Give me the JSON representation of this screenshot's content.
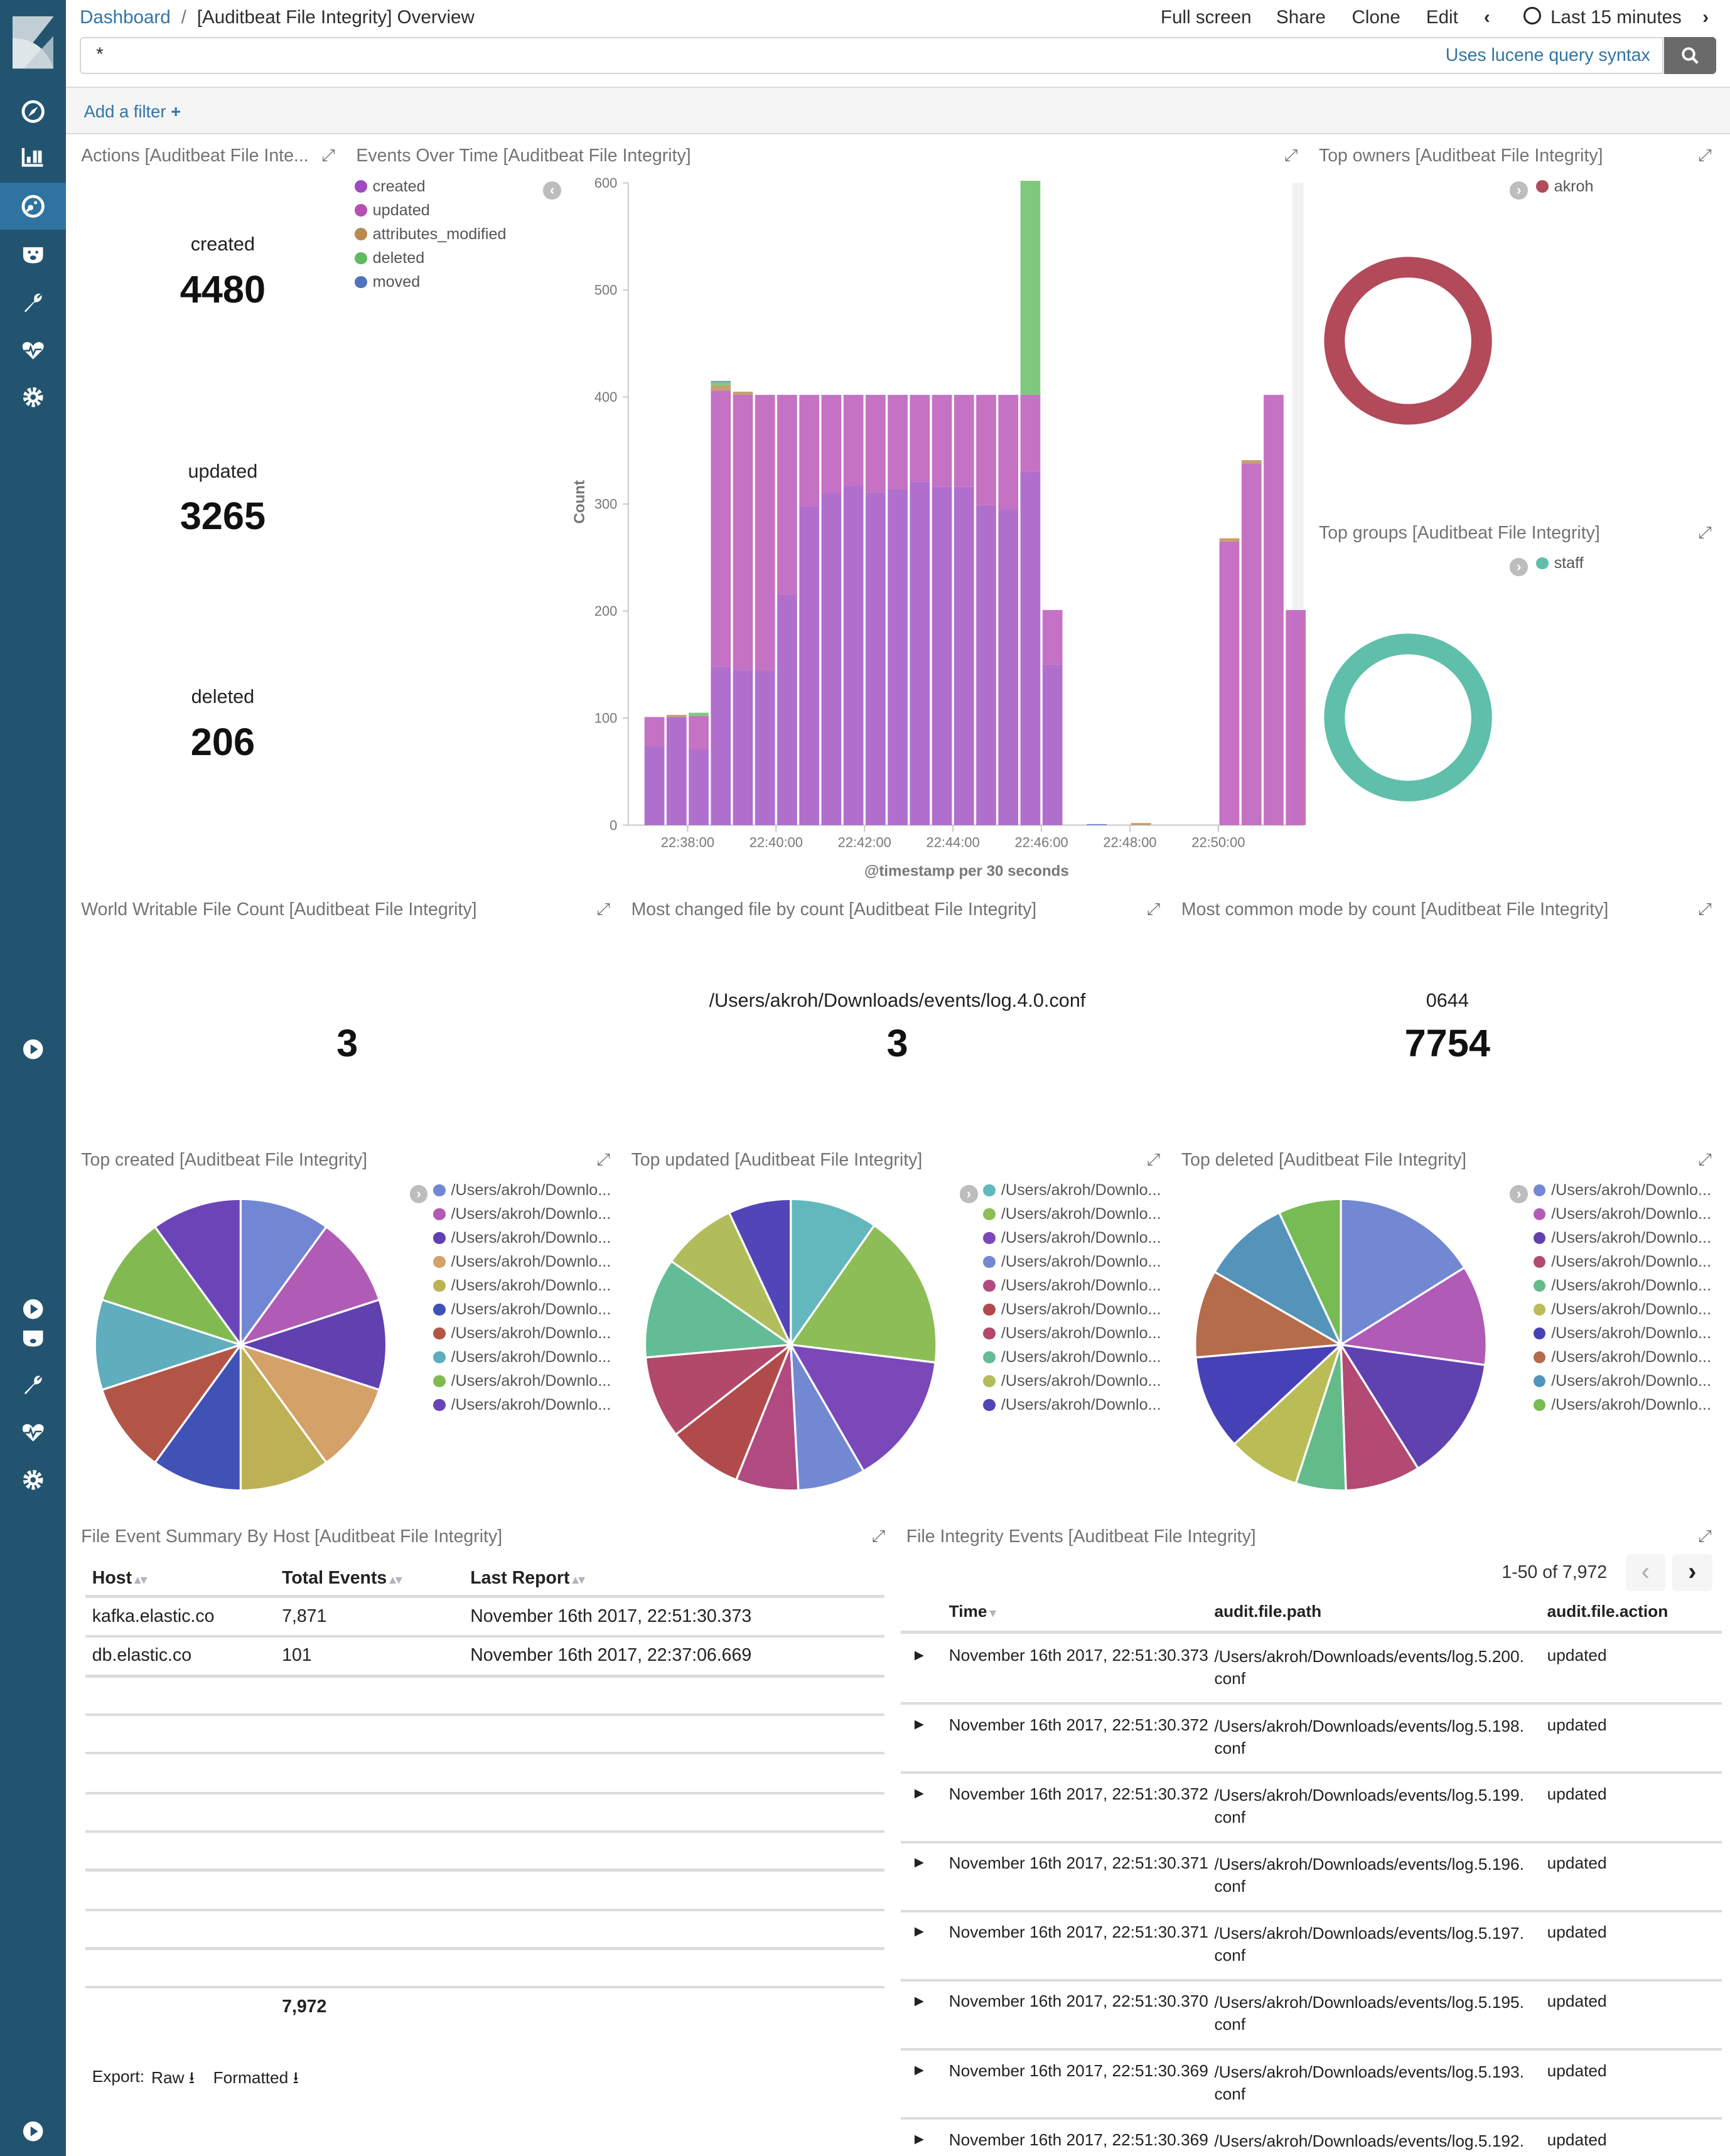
{
  "header": {
    "breadcrumb_root": "Dashboard",
    "breadcrumb_sep": "/",
    "breadcrumb_title": "[Auditbeat File Integrity] Overview",
    "menu": [
      "Full screen",
      "Share",
      "Clone",
      "Edit"
    ],
    "time_range": "Last 15 minutes",
    "prev_icon": "chevron-left-icon",
    "next_icon": "chevron-right-icon"
  },
  "query": {
    "value": "*",
    "syntax_link": "Uses lucene query syntax",
    "search_icon": "search-icon"
  },
  "filter": {
    "add_label": "Add a filter",
    "plus": "+"
  },
  "colors": {
    "sidebar": "#225470",
    "sidebar_active": "#2F73A0",
    "link": "#3175A6"
  },
  "sidebar": {
    "icons": [
      "kibana-logo",
      "compass-icon",
      "bar-chart-icon",
      "dashboard-icon",
      "timelion-bear-icon",
      "wrench-icon",
      "heartbeat-icon",
      "gear-icon",
      "collapse-play-icon"
    ],
    "active": "dashboard-icon"
  },
  "panels": {
    "actions": {
      "title": "Actions [Auditbeat File Inte...",
      "metrics": [
        {
          "label": "created",
          "value": "4480"
        },
        {
          "label": "updated",
          "value": "3265"
        },
        {
          "label": "deleted",
          "value": "206"
        }
      ]
    },
    "events_over_time": {
      "title": "Events Over Time [Auditbeat File Integrity]"
    },
    "top_owners": {
      "title": "Top owners [Auditbeat File Integrity]",
      "legend": "akroh",
      "color": "#B24A5A"
    },
    "top_groups": {
      "title": "Top groups [Auditbeat File Integrity]",
      "legend": "staff",
      "color": "#5FBFAA"
    },
    "world_writable": {
      "title": "World Writable File Count [Auditbeat File Integrity]",
      "label": "",
      "value": "3"
    },
    "most_changed": {
      "title": "Most changed file by count [Auditbeat File Integrity]",
      "label": "/Users/akroh/Downloads/events/log.4.0.conf",
      "value": "3"
    },
    "common_mode": {
      "title": "Most common mode by count [Auditbeat File Integrity]",
      "label": "0644",
      "value": "7754"
    },
    "top_created": {
      "title": "Top created [Auditbeat File Integrity]"
    },
    "top_updated": {
      "title": "Top updated [Auditbeat File Integrity]"
    },
    "top_deleted": {
      "title": "Top deleted [Auditbeat File Integrity]"
    },
    "host_summary": {
      "title": "File Event Summary By Host [Auditbeat File Integrity]",
      "columns": [
        "Host",
        "Total Events",
        "Last Report"
      ],
      "rows": [
        [
          "kafka.elastic.co",
          "7,871",
          "November 16th 2017, 22:51:30.373"
        ],
        [
          "db.elastic.co",
          "101",
          "November 16th 2017, 22:37:06.669"
        ]
      ],
      "total": "7,972",
      "export_label": "Export:",
      "export_raw": "Raw",
      "export_formatted": "Formatted"
    },
    "events_table": {
      "title": "File Integrity Events [Auditbeat File Integrity]",
      "pagination": "1-50 of 7,972",
      "columns": [
        "Time",
        "audit.file.path",
        "audit.file.action"
      ],
      "rows": [
        [
          "November 16th 2017, 22:51:30.373",
          "/Users/akroh/Downloads/events/log.5.200.conf",
          "updated"
        ],
        [
          "November 16th 2017, 22:51:30.372",
          "/Users/akroh/Downloads/events/log.5.198.conf",
          "updated"
        ],
        [
          "November 16th 2017, 22:51:30.372",
          "/Users/akroh/Downloads/events/log.5.199.conf",
          "updated"
        ],
        [
          "November 16th 2017, 22:51:30.371",
          "/Users/akroh/Downloads/events/log.5.196.conf",
          "updated"
        ],
        [
          "November 16th 2017, 22:51:30.371",
          "/Users/akroh/Downloads/events/log.5.197.conf",
          "updated"
        ],
        [
          "November 16th 2017, 22:51:30.370",
          "/Users/akroh/Downloads/events/log.5.195.conf",
          "updated"
        ],
        [
          "November 16th 2017, 22:51:30.369",
          "/Users/akroh/Downloads/events/log.5.193.conf",
          "updated"
        ],
        [
          "November 16th 2017, 22:51:30.369",
          "/Users/akroh/Downloads/events/log.5.192.conf",
          "updated"
        ]
      ]
    }
  },
  "chart_data": [
    {
      "type": "bar",
      "stacked": true,
      "title": "",
      "xlabel": "@timestamp per 30 seconds",
      "ylabel": "Count",
      "ylim": [
        0,
        600
      ],
      "yticks": [
        0,
        100,
        200,
        300,
        400,
        500,
        600
      ],
      "xtick_labels": [
        "22:38:00",
        "22:40:00",
        "22:42:00",
        "22:44:00",
        "22:46:00",
        "22:48:00",
        "22:50:00"
      ],
      "legend_position": "top-left",
      "x": [
        "22:37:00",
        "22:37:30",
        "22:38:00",
        "22:38:30",
        "22:39:00",
        "22:39:30",
        "22:40:00",
        "22:40:30",
        "22:41:00",
        "22:41:30",
        "22:42:00",
        "22:42:30",
        "22:43:00",
        "22:43:30",
        "22:44:00",
        "22:44:30",
        "22:45:00",
        "22:45:30",
        "22:46:00",
        "22:46:30",
        "22:47:00",
        "22:47:30",
        "22:48:00",
        "22:48:30",
        "22:49:00",
        "22:49:30",
        "22:50:00",
        "22:50:30",
        "22:51:00",
        "22:51:30"
      ],
      "series": [
        {
          "name": "created",
          "color": "#9D4BC0",
          "values": [
            74,
            101,
            71,
            148,
            145,
            144,
            215,
            298,
            310,
            317,
            311,
            314,
            321,
            316,
            316,
            299,
            295,
            330,
            150,
            0,
            0,
            0,
            0,
            0,
            0,
            0,
            0,
            0,
            0,
            0
          ]
        },
        {
          "name": "updated",
          "color": "#B74FB5",
          "values": [
            27,
            0,
            31,
            258,
            257,
            258,
            187,
            104,
            92,
            85,
            91,
            88,
            81,
            86,
            86,
            103,
            107,
            72,
            51,
            0,
            0,
            0,
            0,
            0,
            0,
            0,
            265,
            338,
            402,
            201
          ]
        },
        {
          "name": "attributes_modified",
          "color": "#B98A4E",
          "values": [
            0,
            2,
            0,
            5,
            3,
            0,
            0,
            0,
            0,
            0,
            0,
            0,
            0,
            0,
            0,
            0,
            0,
            0,
            0,
            0,
            0,
            0,
            2,
            0,
            0,
            0,
            3,
            3,
            0,
            0
          ]
        },
        {
          "name": "deleted",
          "color": "#5FBB5F",
          "values": [
            0,
            0,
            3,
            3,
            0,
            0,
            0,
            0,
            0,
            0,
            0,
            0,
            0,
            0,
            0,
            0,
            0,
            200,
            0,
            0,
            0,
            0,
            0,
            0,
            0,
            0,
            0,
            0,
            0,
            0
          ]
        },
        {
          "name": "moved",
          "color": "#4F74BE",
          "values": [
            0,
            0,
            0,
            1,
            0,
            0,
            0,
            0,
            0,
            0,
            0,
            0,
            0,
            0,
            0,
            0,
            0,
            0,
            0,
            0,
            1,
            0,
            0,
            0,
            0,
            0,
            0,
            0,
            0,
            0
          ]
        }
      ]
    },
    {
      "type": "pie",
      "donut": true,
      "labels": [
        "akroh"
      ],
      "values": [
        1
      ],
      "colors": [
        "#B24A5A"
      ]
    },
    {
      "type": "pie",
      "donut": true,
      "labels": [
        "staff"
      ],
      "values": [
        1
      ],
      "colors": [
        "#5FBFAA"
      ]
    },
    {
      "type": "pie",
      "labels": [
        "/Users/akroh/Downlo...",
        "/Users/akroh/Downlo...",
        "/Users/akroh/Downlo...",
        "/Users/akroh/Downlo...",
        "/Users/akroh/Downlo...",
        "/Users/akroh/Downlo...",
        "/Users/akroh/Downlo...",
        "/Users/akroh/Downlo...",
        "/Users/akroh/Downlo...",
        "/Users/akroh/Downlo..."
      ],
      "values": [
        1,
        1,
        1,
        1,
        1,
        1,
        1,
        1,
        1,
        1
      ],
      "colors": [
        "#7287D3",
        "#B05BB6",
        "#6140B0",
        "#D4A168",
        "#BEB055",
        "#4152B6",
        "#B35546",
        "#60ADBD",
        "#82BA52",
        "#6B45B8"
      ]
    },
    {
      "type": "pie",
      "labels": [
        "/Users/akroh/Downlo...",
        "/Users/akroh/Downlo...",
        "/Users/akroh/Downlo...",
        "/Users/akroh/Downlo...",
        "/Users/akroh/Downlo...",
        "/Users/akroh/Downlo...",
        "/Users/akroh/Downlo...",
        "/Users/akroh/Downlo...",
        "/Users/akroh/Downlo...",
        "/Users/akroh/Downlo..."
      ],
      "values": [
        35,
        62,
        53,
        27,
        25,
        30,
        33,
        40,
        30,
        25
      ],
      "colors": [
        "#62B8BD",
        "#8CBD57",
        "#7B48BA",
        "#7289D2",
        "#B14A80",
        "#B14B4B",
        "#B2496A",
        "#63BC95",
        "#B1BD5A",
        "#5145B7"
      ]
    },
    {
      "type": "pie",
      "labels": [
        "/Users/akroh/Downlo...",
        "/Users/akroh/Downlo...",
        "/Users/akroh/Downlo...",
        "/Users/akroh/Downlo...",
        "/Users/akroh/Downlo...",
        "/Users/akroh/Downlo...",
        "/Users/akroh/Downlo...",
        "/Users/akroh/Downlo...",
        "/Users/akroh/Downlo...",
        "/Users/akroh/Downlo..."
      ],
      "values": [
        58,
        40,
        50,
        30,
        20,
        29,
        38,
        35,
        35,
        25
      ],
      "colors": [
        "#7388D2",
        "#B05BB6",
        "#5F42B0",
        "#B24A73",
        "#63BB89",
        "#BABD55",
        "#4741B7",
        "#B56C4A",
        "#5494BA",
        "#76BB54"
      ]
    }
  ]
}
